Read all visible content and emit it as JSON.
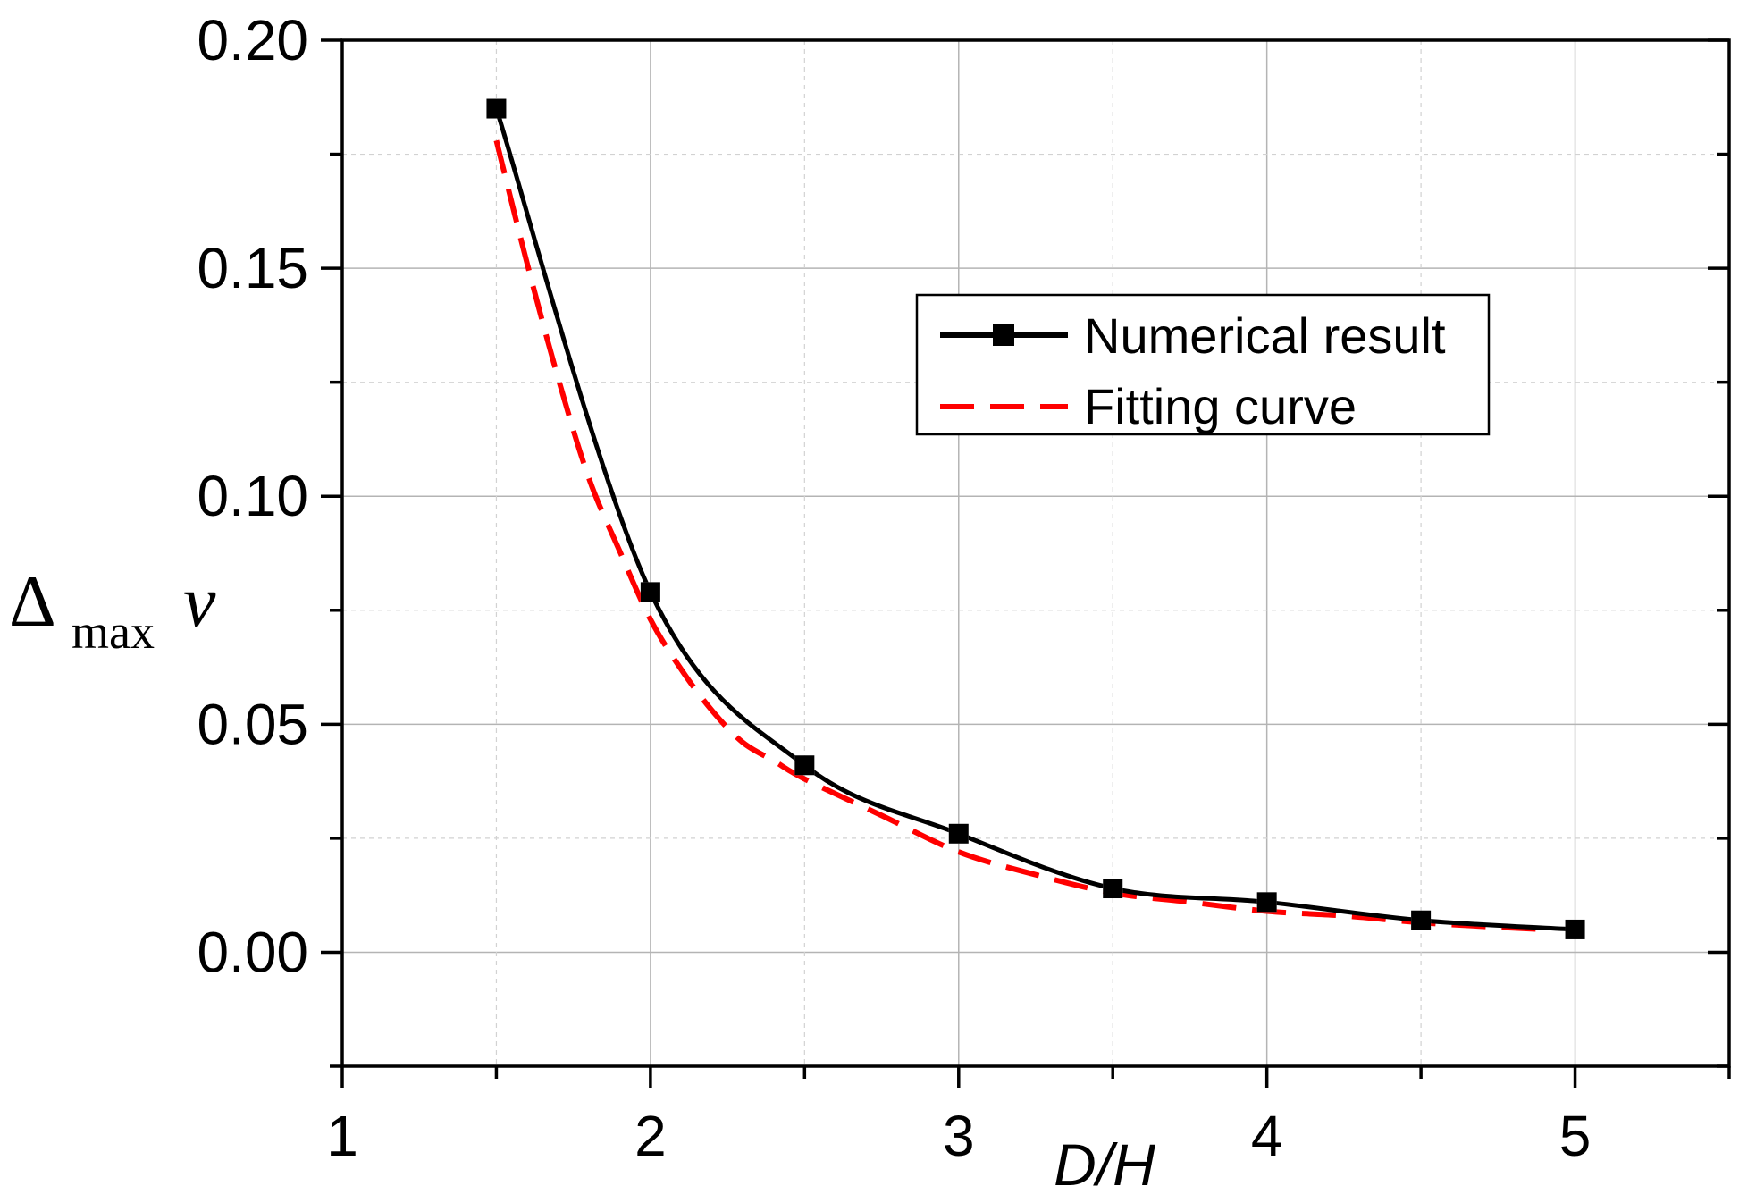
{
  "chart_data": {
    "type": "line",
    "title": "",
    "xlabel": "D/H",
    "ylabel": {
      "symbol": "Δ",
      "subscript": "max",
      "variable": "v"
    },
    "xlim": [
      1,
      5.5
    ],
    "ylim": [
      -0.025,
      0.2
    ],
    "x_ticks": [
      1,
      2,
      3,
      4,
      5
    ],
    "x_tick_labels": [
      "1",
      "2",
      "3",
      "4",
      "5"
    ],
    "x_minor_ticks": [
      1.5,
      2.5,
      3.5,
      4.5,
      5.5
    ],
    "y_ticks": [
      0.0,
      0.05,
      0.1,
      0.15,
      0.2
    ],
    "y_tick_labels": [
      "0.00",
      "0.05",
      "0.10",
      "0.15",
      "0.20"
    ],
    "y_minor_ticks": [
      -0.025,
      0.025,
      0.075,
      0.125,
      0.175
    ],
    "grid": true,
    "legend_position": "upper-right",
    "series": [
      {
        "name": "Numerical result",
        "style": "solid-with-square-markers",
        "color": "#000000",
        "x": [
          1.5,
          2.0,
          2.5,
          3.0,
          3.5,
          4.0,
          4.5,
          5.0
        ],
        "y": [
          0.185,
          0.079,
          0.041,
          0.026,
          0.014,
          0.011,
          0.007,
          0.005
        ]
      },
      {
        "name": "Fitting curve",
        "style": "dashed",
        "color": "#ff0000",
        "x": [
          1.5,
          1.6,
          1.7,
          1.8,
          1.9,
          2.0,
          2.1,
          2.2,
          2.3,
          2.4,
          2.5,
          2.75,
          3.0,
          3.25,
          3.5,
          3.75,
          4.0,
          4.25,
          4.5,
          4.75,
          4.9
        ],
        "y": [
          0.178,
          0.151,
          0.126,
          0.104,
          0.088,
          0.073,
          0.062,
          0.053,
          0.046,
          0.042,
          0.038,
          0.03,
          0.022,
          0.017,
          0.013,
          0.011,
          0.009,
          0.008,
          0.0065,
          0.0055,
          0.005
        ]
      }
    ]
  }
}
